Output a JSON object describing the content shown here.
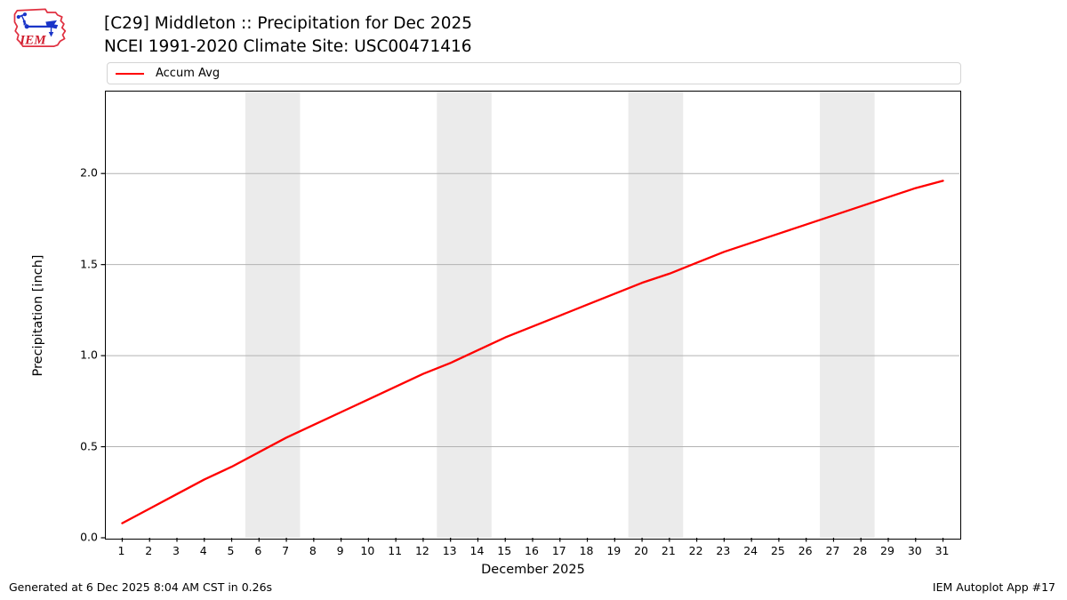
{
  "header": {
    "title_line1": "[C29] Middleton :: Precipitation for Dec 2025",
    "title_line2": "NCEI 1991-2020 Climate Site: USC00471416",
    "logo_text": "IEM"
  },
  "legend": {
    "items": [
      {
        "label": "Accum Avg",
        "color": "#ff0000"
      }
    ]
  },
  "footer": {
    "left": "Generated at 6 Dec 2025 8:04 AM CST in 0.26s",
    "right": "IEM Autoplot App #17"
  },
  "chart_data": {
    "type": "line",
    "title": "[C29] Middleton :: Precipitation for Dec 2025 — NCEI 1991-2020 Climate Site: USC00471416",
    "xlabel": "December 2025",
    "ylabel": "Precipitation [inch]",
    "x": [
      1,
      2,
      3,
      4,
      5,
      6,
      7,
      8,
      9,
      10,
      11,
      12,
      13,
      14,
      15,
      16,
      17,
      18,
      19,
      20,
      21,
      22,
      23,
      24,
      25,
      26,
      27,
      28,
      29,
      30,
      31
    ],
    "xtick_labels": [
      "1",
      "2",
      "3",
      "4",
      "5",
      "6",
      "7",
      "8",
      "9",
      "10",
      "11",
      "12",
      "13",
      "14",
      "15",
      "16",
      "17",
      "18",
      "19",
      "20",
      "21",
      "22",
      "23",
      "24",
      "25",
      "26",
      "27",
      "28",
      "29",
      "30",
      "31"
    ],
    "series": [
      {
        "name": "Accum Avg",
        "color": "#ff0000",
        "values": [
          0.08,
          0.16,
          0.24,
          0.32,
          0.39,
          0.47,
          0.55,
          0.62,
          0.69,
          0.76,
          0.83,
          0.9,
          0.96,
          1.03,
          1.1,
          1.16,
          1.22,
          1.28,
          1.34,
          1.4,
          1.45,
          1.51,
          1.57,
          1.62,
          1.67,
          1.72,
          1.77,
          1.82,
          1.87,
          1.92,
          1.96
        ]
      }
    ],
    "xlim": [
      0.4,
      31.6
    ],
    "ylim": [
      0,
      2.45
    ],
    "yticks": [
      0.0,
      0.5,
      1.0,
      1.5,
      2.0
    ],
    "ytick_labels": [
      "0.0",
      "0.5",
      "1.0",
      "1.5",
      "2.0"
    ],
    "grid": "horizontal",
    "grid_color": "#b2b2b2",
    "weekend_bands": [
      [
        5.5,
        7.5
      ],
      [
        12.5,
        14.5
      ],
      [
        19.5,
        21.5
      ],
      [
        26.5,
        28.5
      ]
    ],
    "band_color": "#ebebeb",
    "legend_position": "top",
    "line_width": 2.3
  }
}
